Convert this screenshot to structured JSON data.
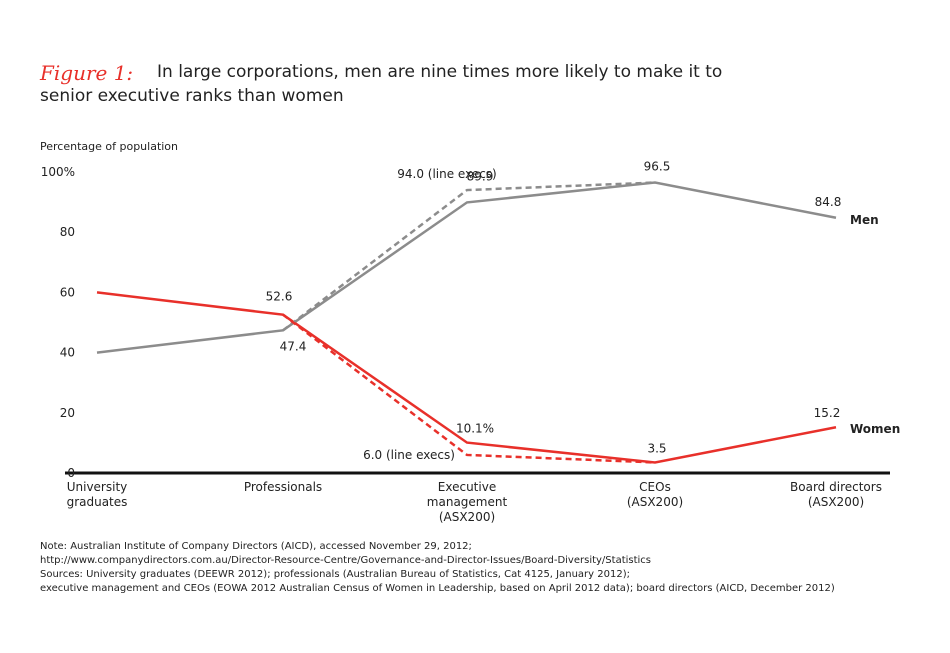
{
  "chart_data": {
    "type": "line",
    "title_prefix": "Figure 1:",
    "title": "In large corporations, men are nine times more likely to make it to senior executive ranks than women",
    "y_label": "Percentage of population",
    "categories": [
      "University\ngraduates",
      "Professionals",
      "Executive\nmanagement\n(ASX200)",
      "CEOs\n(ASX200)",
      "Board directors\n(ASX200)"
    ],
    "ylim": [
      0,
      100
    ],
    "yticks": [
      0,
      20,
      40,
      60,
      80,
      {
        "value": 100,
        "label": "100%"
      }
    ],
    "series": [
      {
        "name": "Men",
        "color": "#8c8c8c",
        "dashed": false,
        "values": [
          40,
          47.4,
          89.9,
          96.5,
          84.8
        ],
        "value_labels": [
          null,
          "47.4",
          "89.9",
          "96.5",
          "84.8"
        ]
      },
      {
        "name": "Women",
        "color": "#e8302a",
        "dashed": false,
        "values": [
          60,
          52.6,
          10.1,
          3.5,
          15.2
        ],
        "value_labels": [
          null,
          "52.6",
          "10.1%",
          "3.5",
          "15.2"
        ]
      },
      {
        "color": "#8c8c8c",
        "dashed": true,
        "values": [
          null,
          47.4,
          94.0,
          96.5,
          null
        ],
        "value_labels": [
          null,
          null,
          "94.0 (line execs)",
          null,
          null
        ]
      },
      {
        "color": "#e8302a",
        "dashed": true,
        "values": [
          null,
          52.6,
          6.0,
          3.5,
          null
        ],
        "value_labels": [
          null,
          null,
          "6.0 (line execs)",
          null,
          null
        ]
      }
    ],
    "notes": [
      "Note: Australian Institute of Company Directors (AICD), accessed November 29, 2012;",
      "http://www.companydirectors.com.au/Director-Resource-Centre/Governance-and-Director-Issues/Board-Diversity/Statistics",
      "Sources: University graduates (DEEWR 2012); professionals (Australian Bureau of Statistics, Cat 4125, January 2012);",
      "executive management and CEOs (EOWA 2012 Australian Census of Women in Leadership, based on April 2012 data); board directors (AICD, December 2012)"
    ]
  }
}
